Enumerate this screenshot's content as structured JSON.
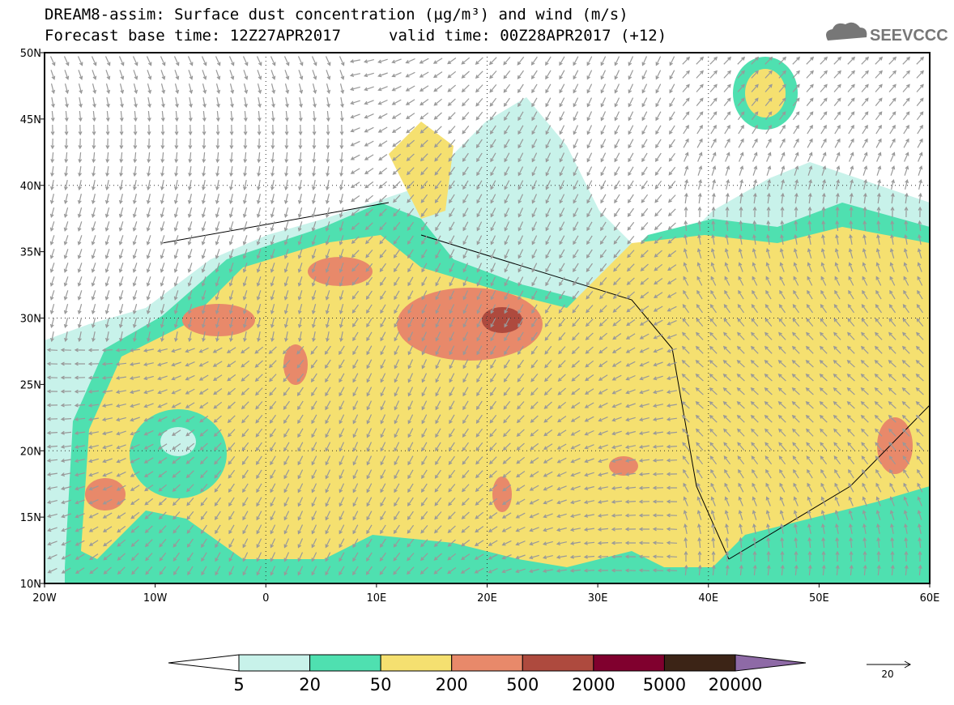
{
  "header": {
    "title_line1": "DREAM8-assim: Surface dust concentration (µg/m³) and wind (m/s)",
    "base_time": "Forecast base time: 12Z27APR2017",
    "valid_time": "valid time: 00Z28APR2017 (+12)",
    "logo": "SEEVCCC"
  },
  "map": {
    "lon_labels": [
      "20W",
      "10W",
      "0",
      "10E",
      "20E",
      "30E",
      "40E",
      "50E",
      "60E"
    ],
    "lat_labels": [
      "10N",
      "15N",
      "20N",
      "25N",
      "30N",
      "35N",
      "40N",
      "45N",
      "50N"
    ]
  },
  "colorbar": {
    "levels": [
      5,
      20,
      50,
      200,
      500,
      2000,
      5000,
      20000
    ],
    "colors": [
      "#ffffff",
      "#c8f2ea",
      "#4fe0b0",
      "#f5e070",
      "#e8896a",
      "#ae4a3e",
      "#80002e",
      "#3c2416",
      "#8e6aa6"
    ]
  },
  "wind_reference": {
    "label": "20"
  }
}
